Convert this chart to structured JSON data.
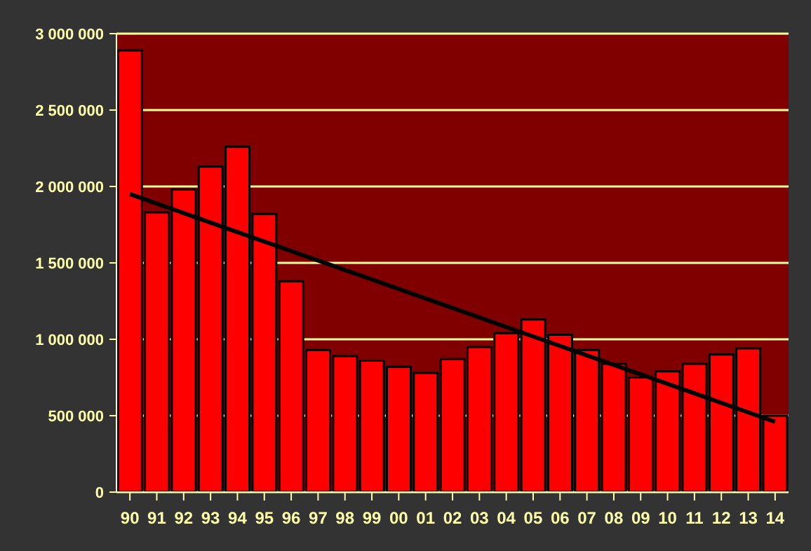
{
  "chart_data": {
    "type": "bar",
    "categories": [
      "90",
      "91",
      "92",
      "93",
      "94",
      "95",
      "96",
      "97",
      "98",
      "99",
      "00",
      "01",
      "02",
      "03",
      "04",
      "05",
      "06",
      "07",
      "08",
      "09",
      "10",
      "11",
      "12",
      "13",
      "14"
    ],
    "series": [
      {
        "color": "#ff0000",
        "values": [
          2890000,
          1830000,
          1980000,
          2130000,
          2260000,
          1820000,
          1380000,
          930000,
          890000,
          860000,
          820000,
          780000,
          870000,
          950000,
          1040000,
          1130000,
          1030000,
          930000,
          840000,
          750000,
          790000,
          840000,
          900000,
          940000,
          500000
        ]
      },
      {
        "type": "line",
        "color": "#000000",
        "x": [
          "90",
          "14"
        ],
        "values": [
          1950000,
          460000
        ]
      }
    ],
    "ylim": [
      0,
      3000000
    ],
    "yticks": [
      {
        "value": 0,
        "label": "0"
      },
      {
        "value": 500000,
        "label": "500 000"
      },
      {
        "value": 1000000,
        "label": "1 000 000"
      },
      {
        "value": 1500000,
        "label": "1 500 000"
      },
      {
        "value": 2000000,
        "label": "2 000 000"
      },
      {
        "value": 2500000,
        "label": "2 500 000"
      },
      {
        "value": 3000000,
        "label": "3 000 000"
      }
    ],
    "grid": "y",
    "legend": false
  }
}
